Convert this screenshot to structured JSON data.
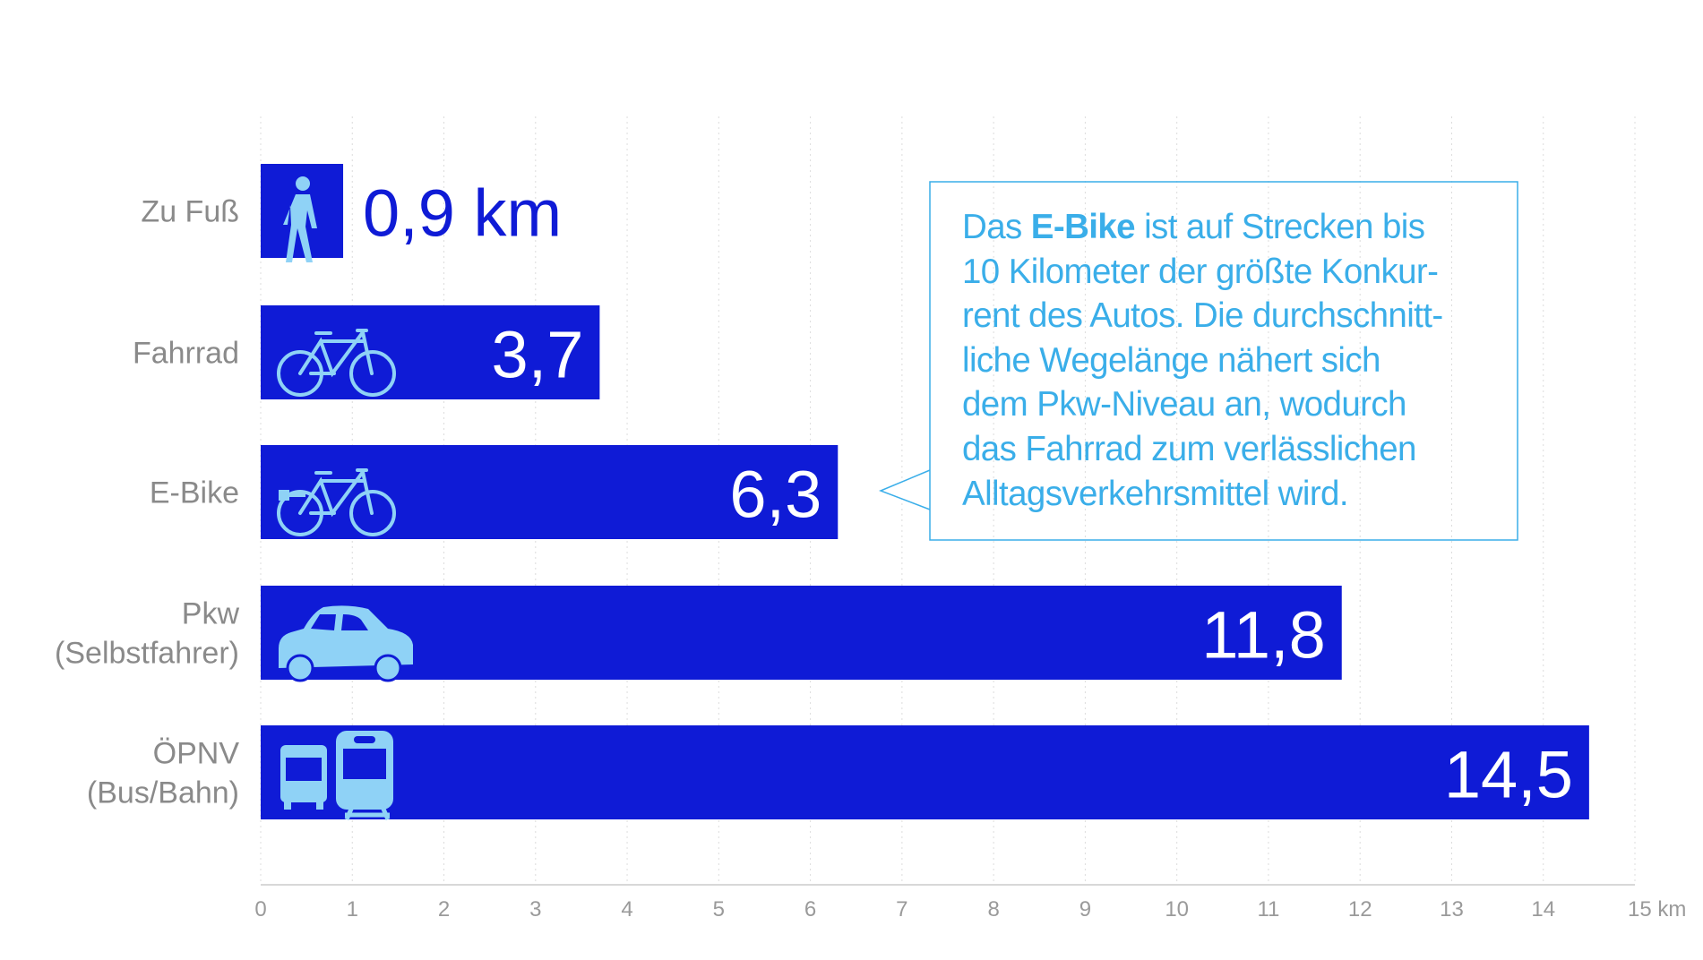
{
  "chart_data": {
    "type": "bar",
    "orientation": "horizontal",
    "categories": [
      "Zu Fuß",
      "Fahrrad",
      "E-Bike",
      "Pkw\n(Selbstfahrer)",
      "ÖPNV\n(Bus/Bahn)"
    ],
    "category_lines": [
      [
        "Zu Fuß"
      ],
      [
        "Fahrrad"
      ],
      [
        "E-Bike"
      ],
      [
        "Pkw",
        "(Selbstfahrer)"
      ],
      [
        "ÖPNV",
        "(Bus/Bahn)"
      ]
    ],
    "values": [
      0.9,
      3.7,
      6.3,
      11.8,
      14.5
    ],
    "value_labels": [
      "0,9 km",
      "3,7",
      "6,3",
      "11,8",
      "14,5"
    ],
    "icons": [
      "pedestrian-icon",
      "bicycle-icon",
      "e-bike-icon",
      "car-icon",
      "bus-train-icon"
    ],
    "xlim": [
      0,
      15
    ],
    "x_ticks": [
      "0",
      "1",
      "2",
      "3",
      "4",
      "5",
      "6",
      "7",
      "8",
      "9",
      "10",
      "11",
      "12",
      "13",
      "14",
      "15 km"
    ],
    "xunit": "km",
    "grid": true,
    "colors": {
      "bar": "#0f1bd6",
      "icon": "#8fd2f6",
      "callout": "#3aaee9",
      "label": "#8a8a8a"
    }
  },
  "callout": {
    "lines": [
      {
        "pre": "Das ",
        "bold": "E-Bike",
        "post": " ist auf Strecken bis"
      },
      {
        "pre": "10 Kilometer der größte Konkur-"
      },
      {
        "pre": "rent des Autos. Die durchschnitt-"
      },
      {
        "pre": "liche Wegelänge nähert sich"
      },
      {
        "pre": "dem Pkw-Niveau an, wodurch"
      },
      {
        "pre": "das Fahrrad zum verlässlichen"
      },
      {
        "pre": "Alltagsverkehrsmittel wird."
      }
    ]
  }
}
